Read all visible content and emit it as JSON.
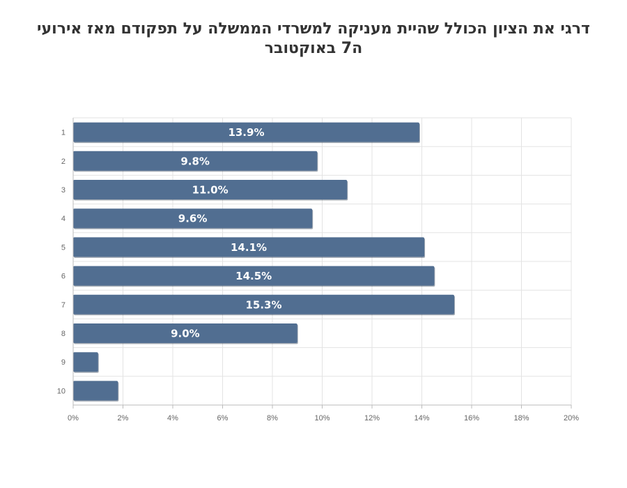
{
  "chart_data": {
    "type": "bar",
    "orientation": "horizontal",
    "title": "דרגי את הציון הכולל שהיית מעניקה למשרדי הממשלה על תפקודם מאז אירועי ה7 באוקטובר",
    "categories": [
      "1",
      "2",
      "3",
      "4",
      "5",
      "6",
      "7",
      "8",
      "9",
      "10"
    ],
    "values": [
      13.9,
      9.8,
      11.0,
      9.6,
      14.1,
      14.5,
      15.3,
      9.0,
      1.0,
      1.8
    ],
    "data_labels": [
      "13.9%",
      "9.8%",
      "11.0%",
      "9.6%",
      "14.1%",
      "14.5%",
      "15.3%",
      "9.0%",
      "",
      ""
    ],
    "x_ticks": [
      "0%",
      "2%",
      "4%",
      "6%",
      "8%",
      "10%",
      "12%",
      "14%",
      "16%",
      "18%",
      "20%"
    ],
    "xlim": [
      0,
      20
    ],
    "grid": true,
    "legend": "none",
    "bar_color": "#516e91",
    "grid_color": "#e3e3e3",
    "axis_color": "#bbbbbb"
  }
}
